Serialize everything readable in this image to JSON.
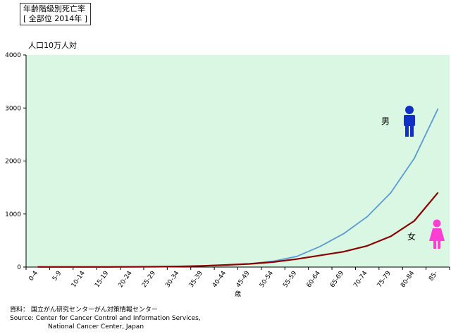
{
  "chart_data": {
    "type": "line",
    "title": "年齢階級別死亡率",
    "subtitle": "[ 全部位 2014年 ]",
    "ylabel": "人口10万人対",
    "xlabel": "歳",
    "ylim": [
      0,
      4000
    ],
    "yticks": [
      0,
      1000,
      2000,
      3000,
      4000
    ],
    "grid": false,
    "categories": [
      "0-4",
      "5-9",
      "10-14",
      "15-19",
      "20-24",
      "25-29",
      "30-34",
      "35-39",
      "40-44",
      "45-49",
      "50-54",
      "55-59",
      "60-64",
      "65-69",
      "70-74",
      "75-79",
      "80-84",
      "85-"
    ],
    "series": [
      {
        "name": "男",
        "color": "#5b9bd5",
        "values": [
          3,
          2,
          2,
          3,
          5,
          7,
          12,
          20,
          38,
          62,
          110,
          200,
          390,
          630,
          950,
          1400,
          2050,
          2980
        ]
      },
      {
        "name": "女",
        "color": "#8b0000",
        "values": [
          3,
          2,
          2,
          3,
          4,
          7,
          12,
          22,
          40,
          60,
          95,
          150,
          220,
          290,
          400,
          580,
          870,
          1400
        ]
      }
    ],
    "plot_bg": "#d9f7e2"
  },
  "source": {
    "line1": "資料： 国立がん研究センターがん対策情報センター",
    "line2": "Source: Center for Cancer Control and Information Services,",
    "line3": "National Cancer Center, Japan"
  },
  "icons": {
    "male": {
      "name": "male-figure-icon",
      "color": "#1030c8"
    },
    "female": {
      "name": "female-figure-icon",
      "color": "#ff3fd2"
    }
  }
}
